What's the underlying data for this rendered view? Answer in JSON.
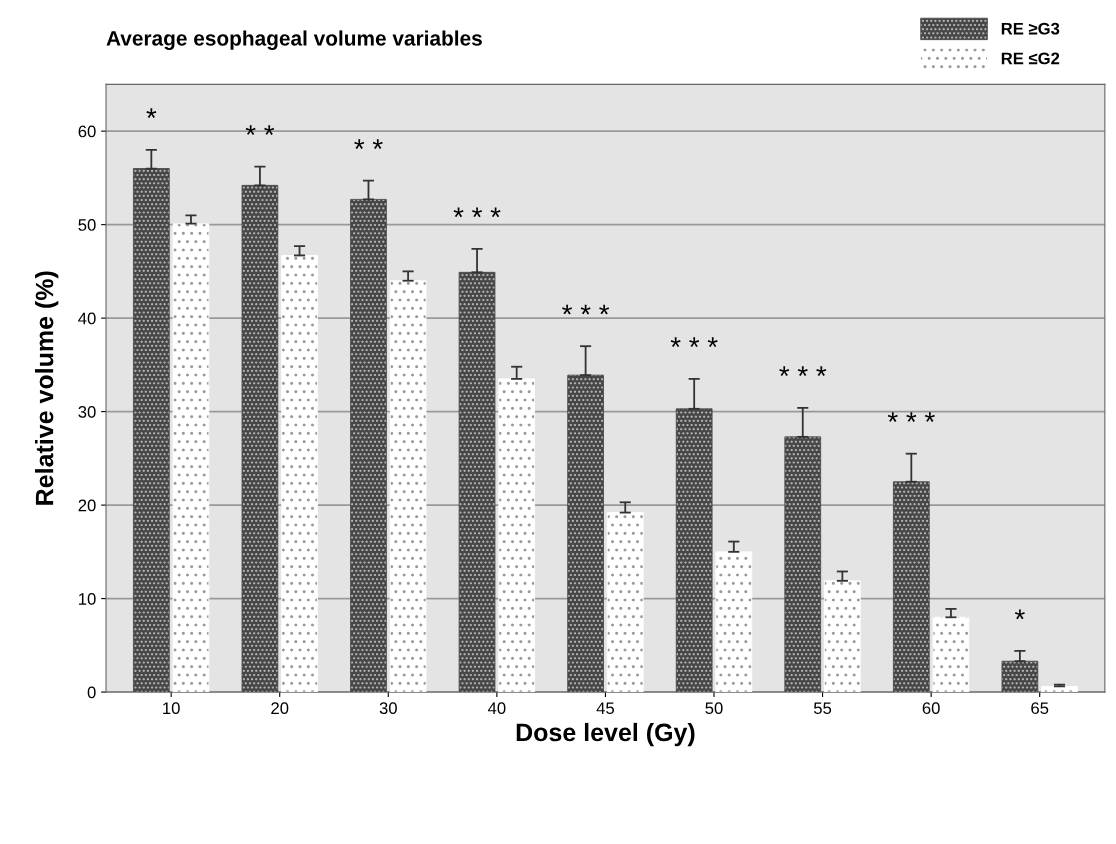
{
  "chart_data": {
    "type": "bar",
    "title": "Average esophageal volume variables",
    "xlabel": "Dose level (Gy)",
    "ylabel": "Relative volume (%)",
    "categories": [
      "10",
      "20",
      "30",
      "40",
      "45",
      "50",
      "55",
      "60",
      "65"
    ],
    "series": [
      {
        "name": "RE ≥G3",
        "color": "#474747",
        "values": [
          56.0,
          54.2,
          52.7,
          44.9,
          33.9,
          30.3,
          27.3,
          22.5,
          3.3
        ],
        "errors": [
          2.0,
          2.0,
          2.0,
          2.5,
          3.1,
          3.2,
          3.1,
          3.0,
          1.1
        ]
      },
      {
        "name": "RE ≤G2",
        "color": "#ffffff",
        "values": [
          50.1,
          46.7,
          44.0,
          33.5,
          19.2,
          15.0,
          11.9,
          8.0,
          0.6
        ],
        "errors": [
          0.9,
          1.0,
          1.0,
          1.3,
          1.1,
          1.1,
          1.0,
          0.9,
          0.2
        ]
      }
    ],
    "ylim": [
      0,
      65
    ],
    "yticks": [
      0,
      10,
      20,
      30,
      40,
      50,
      60
    ],
    "grid": "y",
    "legend": "top right",
    "annotations": [
      "*",
      "* *",
      "* *",
      "* * *",
      "* * *",
      "* * *",
      "* * *",
      "* * *",
      "*"
    ]
  }
}
